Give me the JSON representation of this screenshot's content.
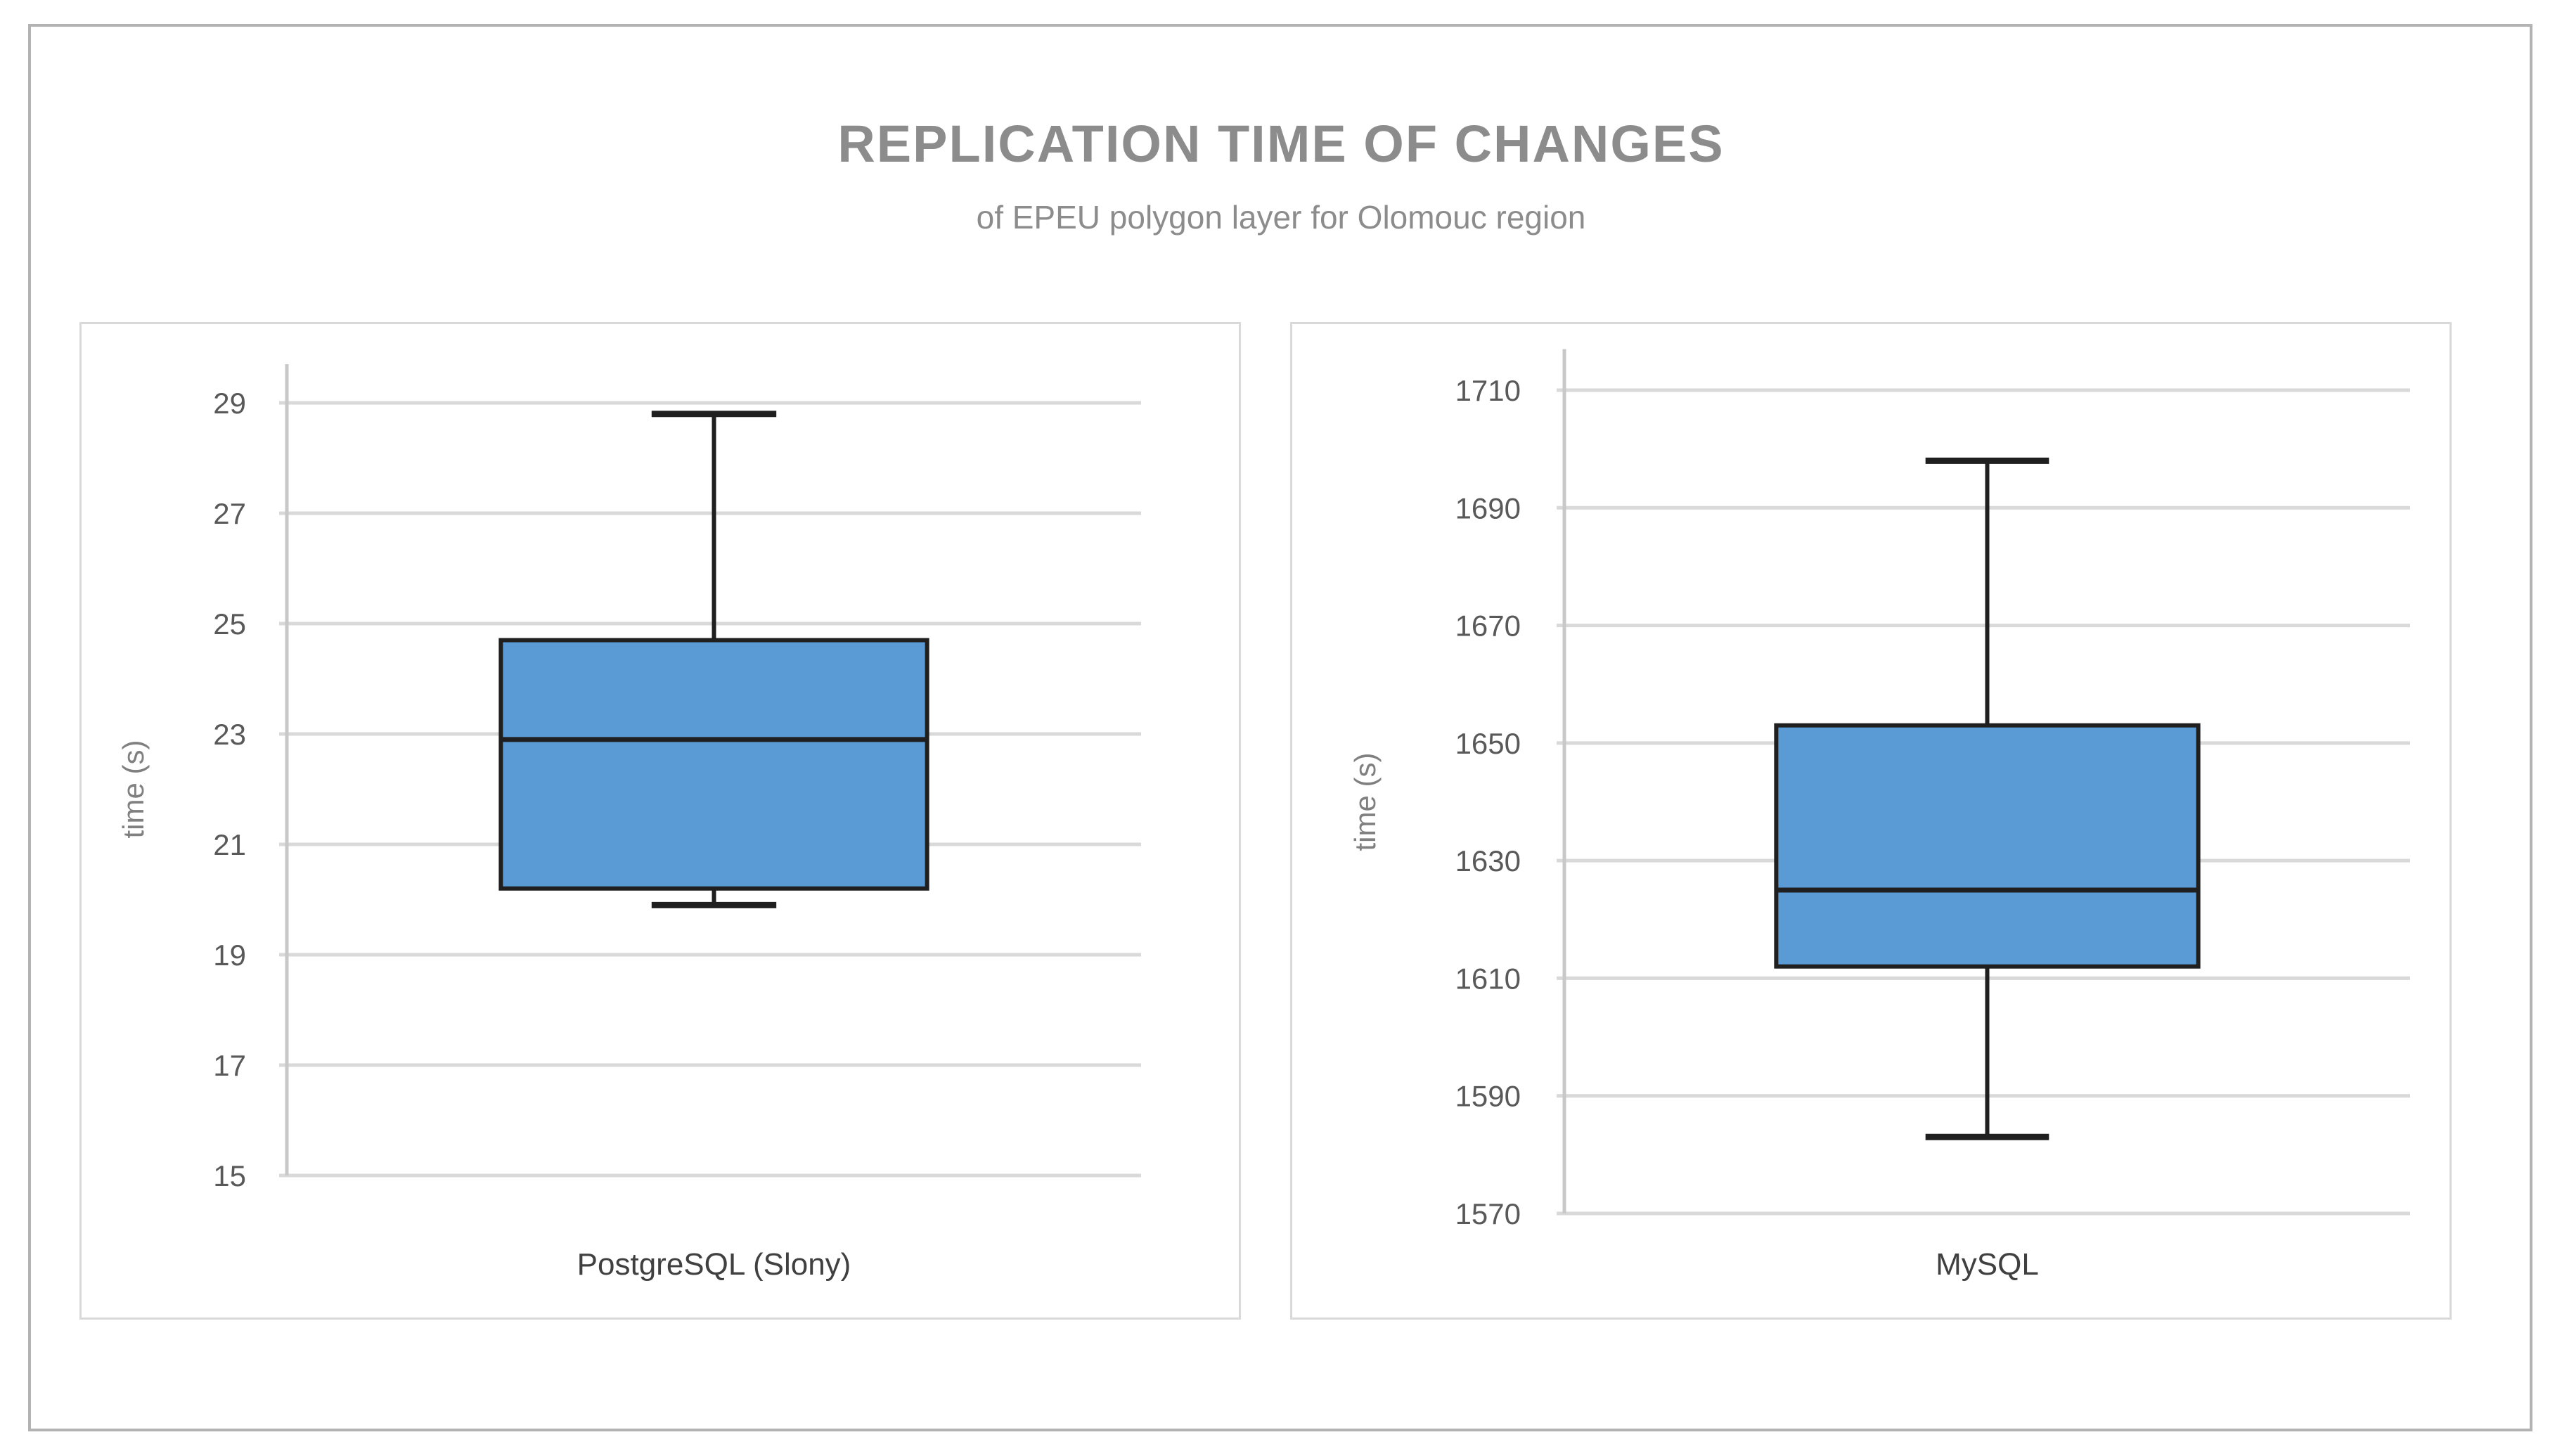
{
  "page": {
    "title": "REPLICATION TIME OF CHANGES",
    "subtitle": "of EPEU polygon layer for Olomouc region"
  },
  "colors": {
    "box_fill": "#5B9BD5",
    "box_stroke": "#1F1F1F",
    "gridline": "#D9D9D9",
    "axis_line": "#C8C8C8",
    "panel_border": "#D9D9D9",
    "outer_border": "#B3B3B3",
    "title_text": "#8C8C8C",
    "tick_text": "#595959",
    "category_text": "#404040",
    "axis_title_text": "#808080"
  },
  "chart_data": [
    {
      "type": "boxplot",
      "category": "PostgreSQL (Slony)",
      "ylabel": "time (s)",
      "yticks": [
        29,
        27,
        25,
        23,
        21,
        19,
        17,
        15
      ],
      "ylim": [
        15,
        29.7
      ],
      "grid": "horizontal",
      "stats": {
        "min": 19.9,
        "q1": 20.2,
        "median": 22.9,
        "q3": 24.7,
        "max": 28.8
      }
    },
    {
      "type": "boxplot",
      "category": "MySQL",
      "ylabel": "time (s)",
      "yticks": [
        1710,
        1690,
        1670,
        1650,
        1630,
        1610,
        1590,
        1570
      ],
      "ylim": [
        1570,
        1717
      ],
      "grid": "horizontal",
      "stats": {
        "min": 1583,
        "q1": 1612,
        "median": 1625,
        "q3": 1653,
        "max": 1698
      }
    }
  ]
}
